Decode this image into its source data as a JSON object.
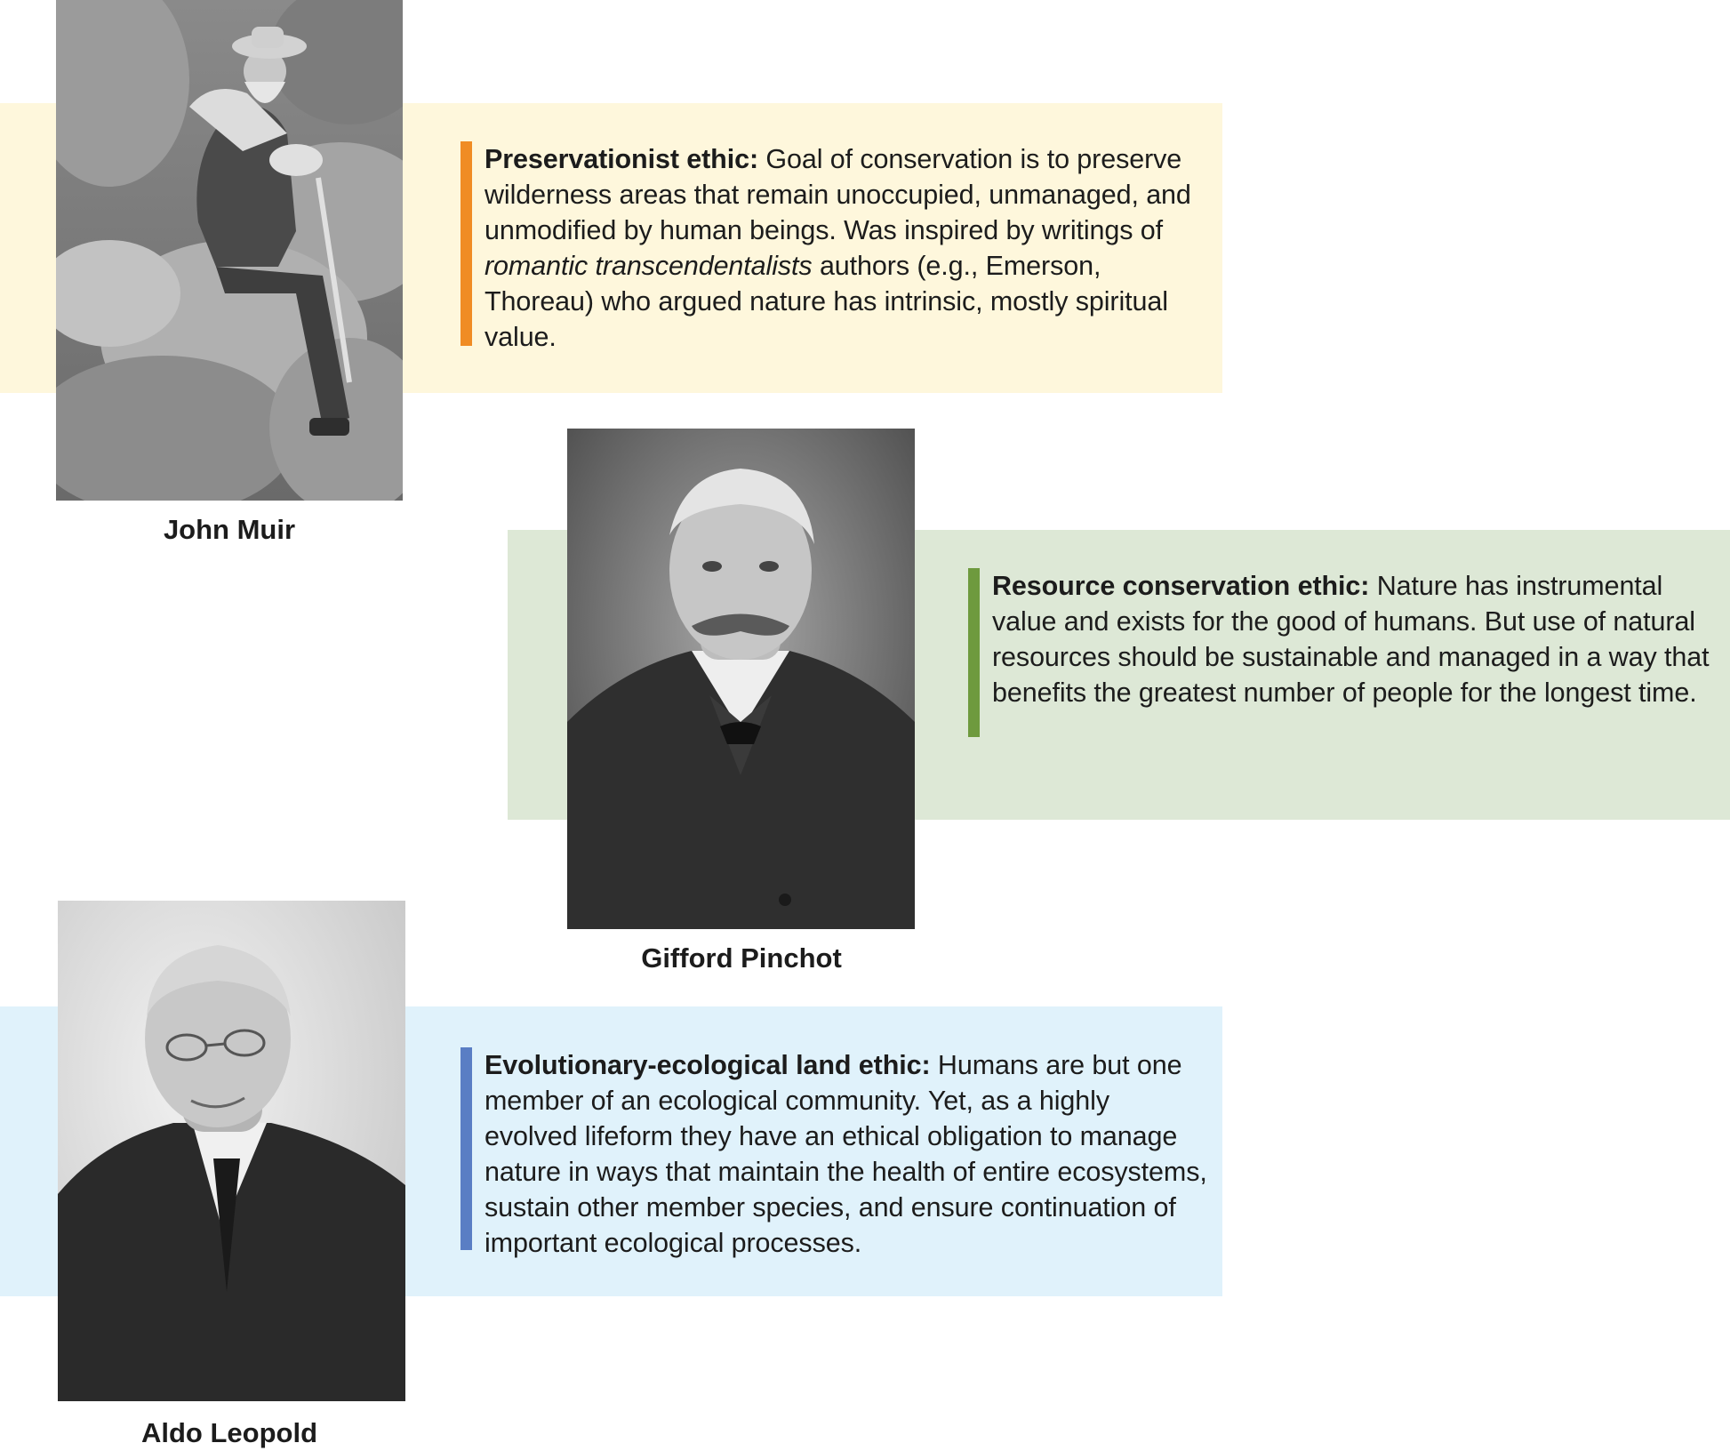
{
  "sections": [
    {
      "term": "Preservationist ethic:",
      "text_before": "Goal of conservation is to preserve wilderness areas that remain unoccupied, unmanaged, and unmodified by human beings. Was inspired by writings of",
      "emphasis": "romantic transcendentalists",
      "text_after": "authors (e.g., Emerson, Thoreau) who argued nature has intrinsic, mostly spiritual value.",
      "person": "John Muir",
      "accent_color": "#f08c24",
      "band_color": "#fef7dc"
    },
    {
      "term": "Resource conservation ethic:",
      "text": "Nature has instrumental value and exists for the good of humans. But use of natural resources should be sustainable and managed in a way that benefits the greatest number of people for the longest time.",
      "person": "Gifford Pinchot",
      "accent_color": "#6e9a3e",
      "band_color": "#dde8d6"
    },
    {
      "term": "Evolutionary-ecological land ethic:",
      "text": "Humans are but one member of an ecological community. Yet, as a highly evolved lifeform they have an ethical obligation to manage nature in ways that maintain the health of entire ecosystems, sustain other member species, and ensure continuation of important ecological processes.",
      "person": "Aldo Leopold",
      "accent_color": "#5a7ec4",
      "band_color": "#e0f2fb"
    }
  ]
}
